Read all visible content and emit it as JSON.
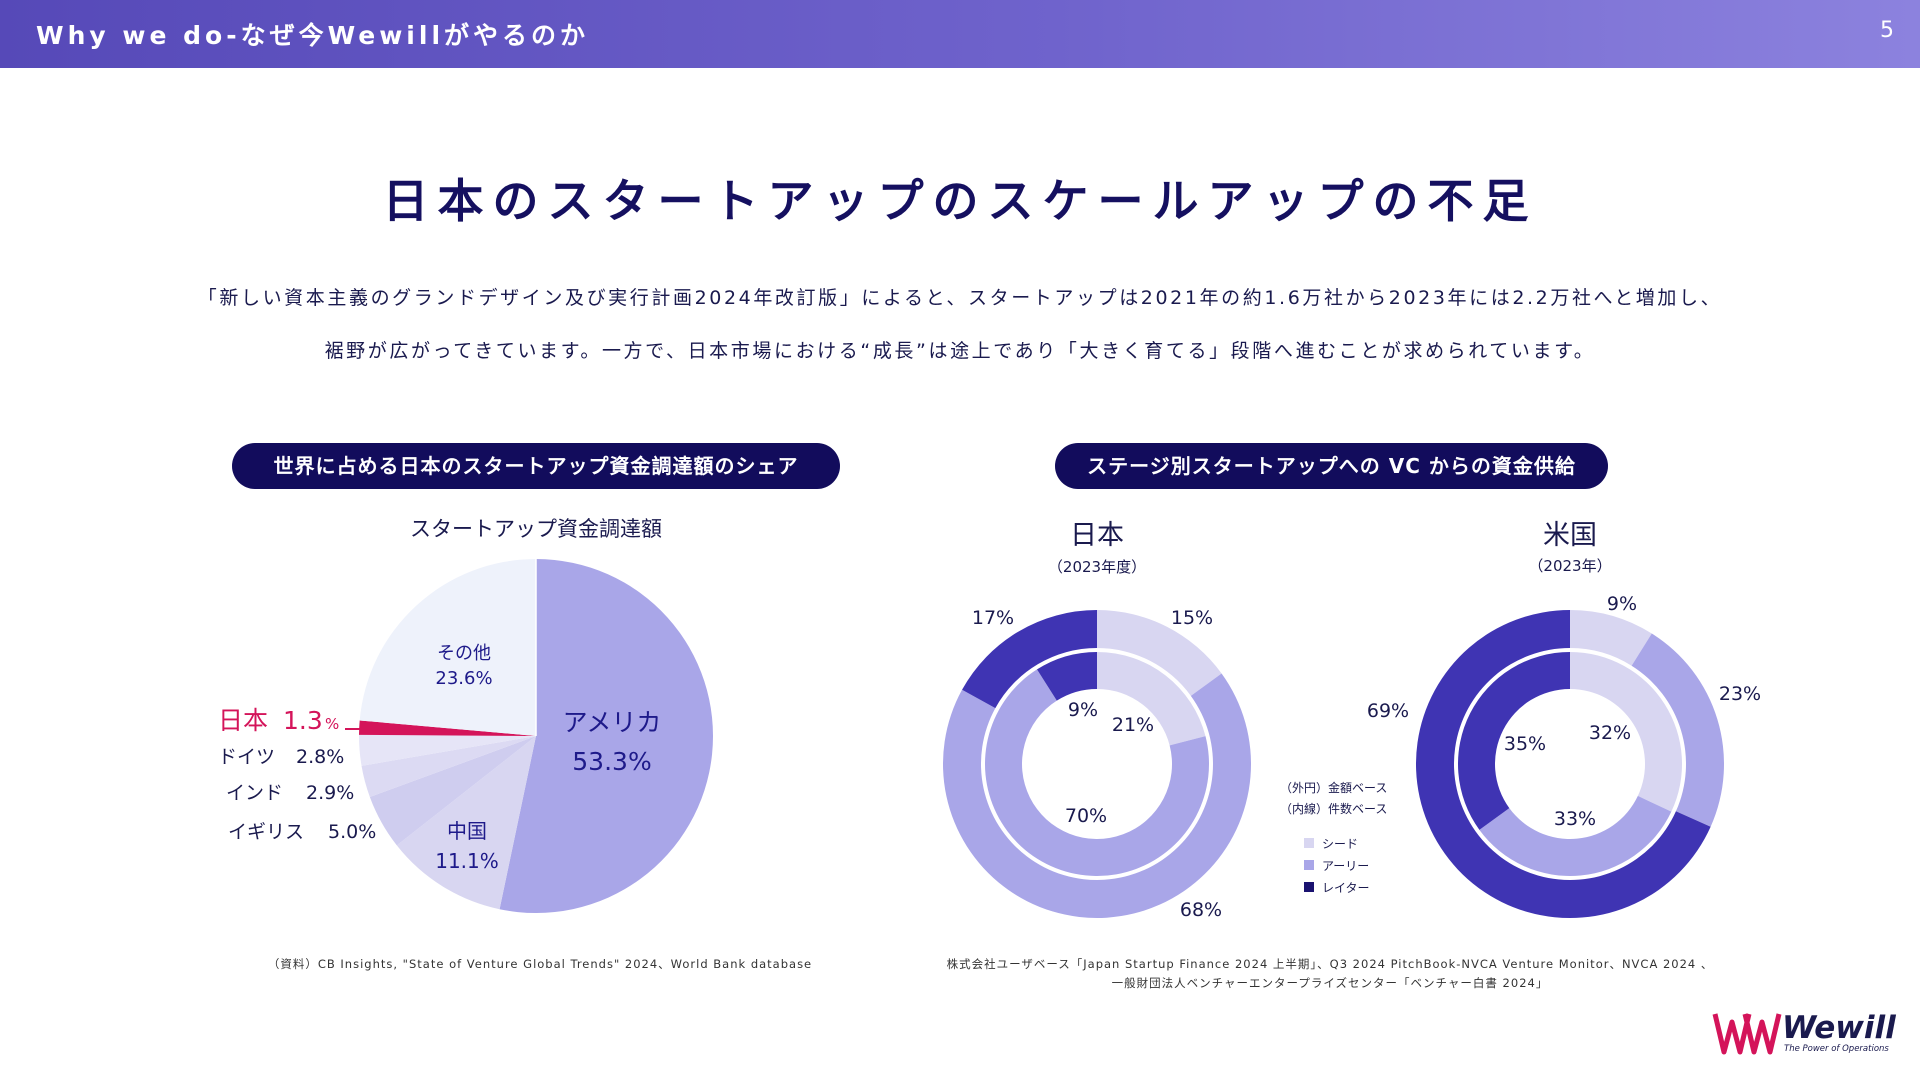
{
  "header": {
    "title": "Why we do-なぜ今Wewillがやるのか",
    "page_number": "5"
  },
  "main_title": "日本のスタートアップのスケールアップの不足",
  "intro": {
    "line1": "「新しい資本主義のグランドデザイン及び実行計画2024年改訂版」によると、スタートアップは2021年の約1.6万社から2023年には2.2万社へと増加し、",
    "line2": "裾野が広がってきています。一方で、日本市場における“成長”は途上であり「大きく育てる」段階へ進むことが求められています。"
  },
  "left_panel": {
    "pill": "世界に占める日本のスタートアップ資金調達額のシェア",
    "source": "（資料）CB Insights, \"State of Venture Global Trends\" 2024、World Bank database"
  },
  "right_panel": {
    "pill": "ステージ別スタートアップへの VC からの資金供給",
    "source_line1": "株式会社ユーザベース「Japan Startup Finance 2024 上半期」、Q3 2024 PitchBook-NVCA Venture Monitor、NVCA 2024 、",
    "source_line2": "一般財団法人ベンチャーエンタープライズセンター「ベンチャー白書 2024」"
  },
  "colors": {
    "seed": "#d8d6f1",
    "early": "#a9a6e8",
    "later": "#3f34b3",
    "japan": "#d4145a",
    "us": "#a9a6e8",
    "china": "#d8d6f1",
    "other": "#eef2fb"
  },
  "chart_data": [
    {
      "type": "pie",
      "title": "スタートアップ資金調達額",
      "categories": [
        "アメリカ",
        "中国",
        "イギリス",
        "インド",
        "ドイツ",
        "日本",
        "その他"
      ],
      "values": [
        53.3,
        11.1,
        5.0,
        2.9,
        2.8,
        1.3,
        23.6
      ],
      "unit": "%",
      "labels": {
        "us": "アメリカ",
        "us_value": "53.3%",
        "china": "中国",
        "china_value": "11.1%",
        "uk": "イギリス",
        "uk_value": "5.0%",
        "india": "インド",
        "india_value": "2.9%",
        "germany": "ドイツ",
        "germany_value": "2.8%",
        "japan": "日本",
        "japan_value": "1.3",
        "other": "その他",
        "other_value": "23.6%"
      }
    },
    {
      "type": "donut",
      "title": "日本",
      "subtitle": "（2023年度）",
      "categories": [
        "シード",
        "アーリー",
        "レイター"
      ],
      "series": [
        {
          "name": "金額ベース（外円）",
          "values": [
            15,
            68,
            17
          ]
        },
        {
          "name": "件数ベース（内線）",
          "values": [
            21,
            70,
            9
          ]
        }
      ],
      "labels": {
        "outer": [
          "15%",
          "68%",
          "17%"
        ],
        "inner": [
          "21%",
          "70%",
          "9%"
        ]
      }
    },
    {
      "type": "donut",
      "title": "米国",
      "subtitle": "（2023年）",
      "categories": [
        "シード",
        "アーリー",
        "レイター"
      ],
      "series": [
        {
          "name": "金額ベース（外円）",
          "values": [
            9,
            23,
            69
          ]
        },
        {
          "name": "件数ベース（内線）",
          "values": [
            32,
            33,
            35
          ]
        }
      ],
      "labels": {
        "outer": [
          "9%",
          "23%",
          "69%"
        ],
        "inner": [
          "32%",
          "33%",
          "35%"
        ]
      }
    }
  ],
  "legend": {
    "outer_note": "（外円）金額ベース",
    "inner_note": "（内線）件数ベース",
    "items": [
      "シード",
      "アーリー",
      "レイター"
    ]
  },
  "logo": {
    "text": "Wewill",
    "tagline": "The Power of Operations"
  }
}
